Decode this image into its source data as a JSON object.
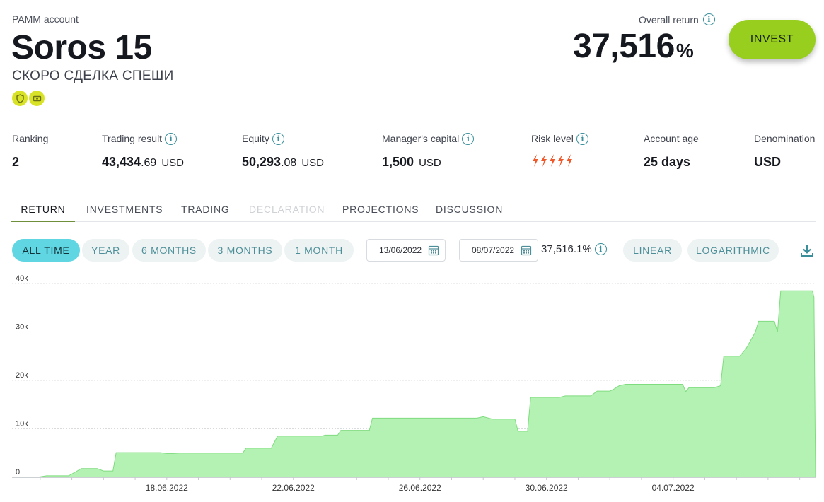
{
  "header": {
    "account_type": "PAMM account",
    "name": "Soros 15",
    "subtitle": "СКОРО СДЕЛКА СПЕШИ",
    "overall_return_label": "Overall return",
    "overall_return_value": "37,516",
    "overall_return_unit": "%",
    "invest_label": "INVEST",
    "badge_icons": [
      "shield-badge-icon",
      "money-badge-icon"
    ]
  },
  "stats": {
    "ranking": {
      "label": "Ranking",
      "value": "2"
    },
    "trading_result": {
      "label": "Trading result",
      "value_int": "43,434",
      "value_dec": ".69",
      "unit": "USD"
    },
    "equity": {
      "label": "Equity",
      "value_int": "50,293",
      "value_dec": ".08",
      "unit": "USD"
    },
    "managers_capital": {
      "label": "Manager's capital",
      "value": "1,500",
      "unit": "USD"
    },
    "risk_level": {
      "label": "Risk level",
      "level": 5,
      "max": 5,
      "icon": "lightning-bolt-icon"
    },
    "account_age": {
      "label": "Account age",
      "value": "25 days"
    },
    "denomination": {
      "label": "Denomination",
      "value": "USD"
    }
  },
  "tabs": [
    {
      "label": "RETURN",
      "active": true
    },
    {
      "label": "INVESTMENTS"
    },
    {
      "label": "TRADING"
    },
    {
      "label": "DECLARATION",
      "disabled": true
    },
    {
      "label": "PROJECTIONS"
    },
    {
      "label": "DISCUSSION"
    }
  ],
  "period_filters": [
    "ALL TIME",
    "YEAR",
    "6 MONTHS",
    "3 MONTHS",
    "1 MONTH"
  ],
  "active_period": "ALL TIME",
  "date_from": "13/06/2022",
  "date_to": "08/07/2022",
  "date_separator": "–",
  "range_return": "37,516.1%",
  "scale_options": [
    "LINEAR",
    "LOGARITHMIC"
  ],
  "colors": {
    "accent_green": "#98cf1f",
    "active_pill": "#5fd6e2",
    "teal_text": "#4d8f99",
    "risk_orange": "#f0582a",
    "area_fill": "#b4f2b4",
    "area_line": "#7fdc7f"
  },
  "chart_data": {
    "type": "area",
    "y_ticks": [
      "0",
      "10k",
      "20k",
      "30k",
      "40k"
    ],
    "ylim": [
      0,
      40000
    ],
    "x_ticks": [
      "18.06.2022",
      "22.06.2022",
      "26.06.2022",
      "30.06.2022",
      "04.07.2022"
    ],
    "x_tick_days": [
      18,
      22,
      26,
      30,
      34
    ],
    "xlim_days": [
      13.4,
      38.5
    ],
    "grid": true,
    "series": [
      {
        "points_day_value": [
          [
            13.4,
            0
          ],
          [
            13.9,
            0
          ],
          [
            14.2,
            300
          ],
          [
            14.9,
            300
          ],
          [
            15.3,
            1800
          ],
          [
            15.8,
            1800
          ],
          [
            16.0,
            1300
          ],
          [
            16.3,
            1300
          ],
          [
            16.4,
            5100
          ],
          [
            17.8,
            5100
          ],
          [
            18.0,
            4900
          ],
          [
            18.2,
            4900
          ],
          [
            18.4,
            5000
          ],
          [
            19.6,
            5000
          ],
          [
            20.4,
            5000
          ],
          [
            20.5,
            6000
          ],
          [
            21.3,
            6000
          ],
          [
            21.5,
            8500
          ],
          [
            22.9,
            8500
          ],
          [
            23.0,
            8700
          ],
          [
            23.4,
            8700
          ],
          [
            23.5,
            9700
          ],
          [
            24.4,
            9700
          ],
          [
            24.5,
            12200
          ],
          [
            26.3,
            12200
          ],
          [
            27.8,
            12200
          ],
          [
            28.0,
            12500
          ],
          [
            28.3,
            12000
          ],
          [
            29.0,
            12000
          ],
          [
            29.1,
            9500
          ],
          [
            29.4,
            9500
          ],
          [
            29.5,
            16500
          ],
          [
            30.4,
            16500
          ],
          [
            30.6,
            16800
          ],
          [
            31.4,
            16800
          ],
          [
            31.6,
            17800
          ],
          [
            32.0,
            17800
          ],
          [
            32.1,
            18100
          ],
          [
            32.3,
            18900
          ],
          [
            32.5,
            19200
          ],
          [
            34.3,
            19200
          ],
          [
            34.4,
            17700
          ],
          [
            34.5,
            18500
          ],
          [
            35.3,
            18500
          ],
          [
            35.5,
            18900
          ],
          [
            35.6,
            25000
          ],
          [
            36.1,
            25000
          ],
          [
            36.3,
            26500
          ],
          [
            36.6,
            30000
          ],
          [
            36.7,
            32200
          ],
          [
            37.2,
            32200
          ],
          [
            37.3,
            30000
          ],
          [
            37.4,
            38500
          ],
          [
            38.4,
            38500
          ],
          [
            38.45,
            37200
          ],
          [
            38.5,
            0
          ]
        ]
      }
    ]
  }
}
